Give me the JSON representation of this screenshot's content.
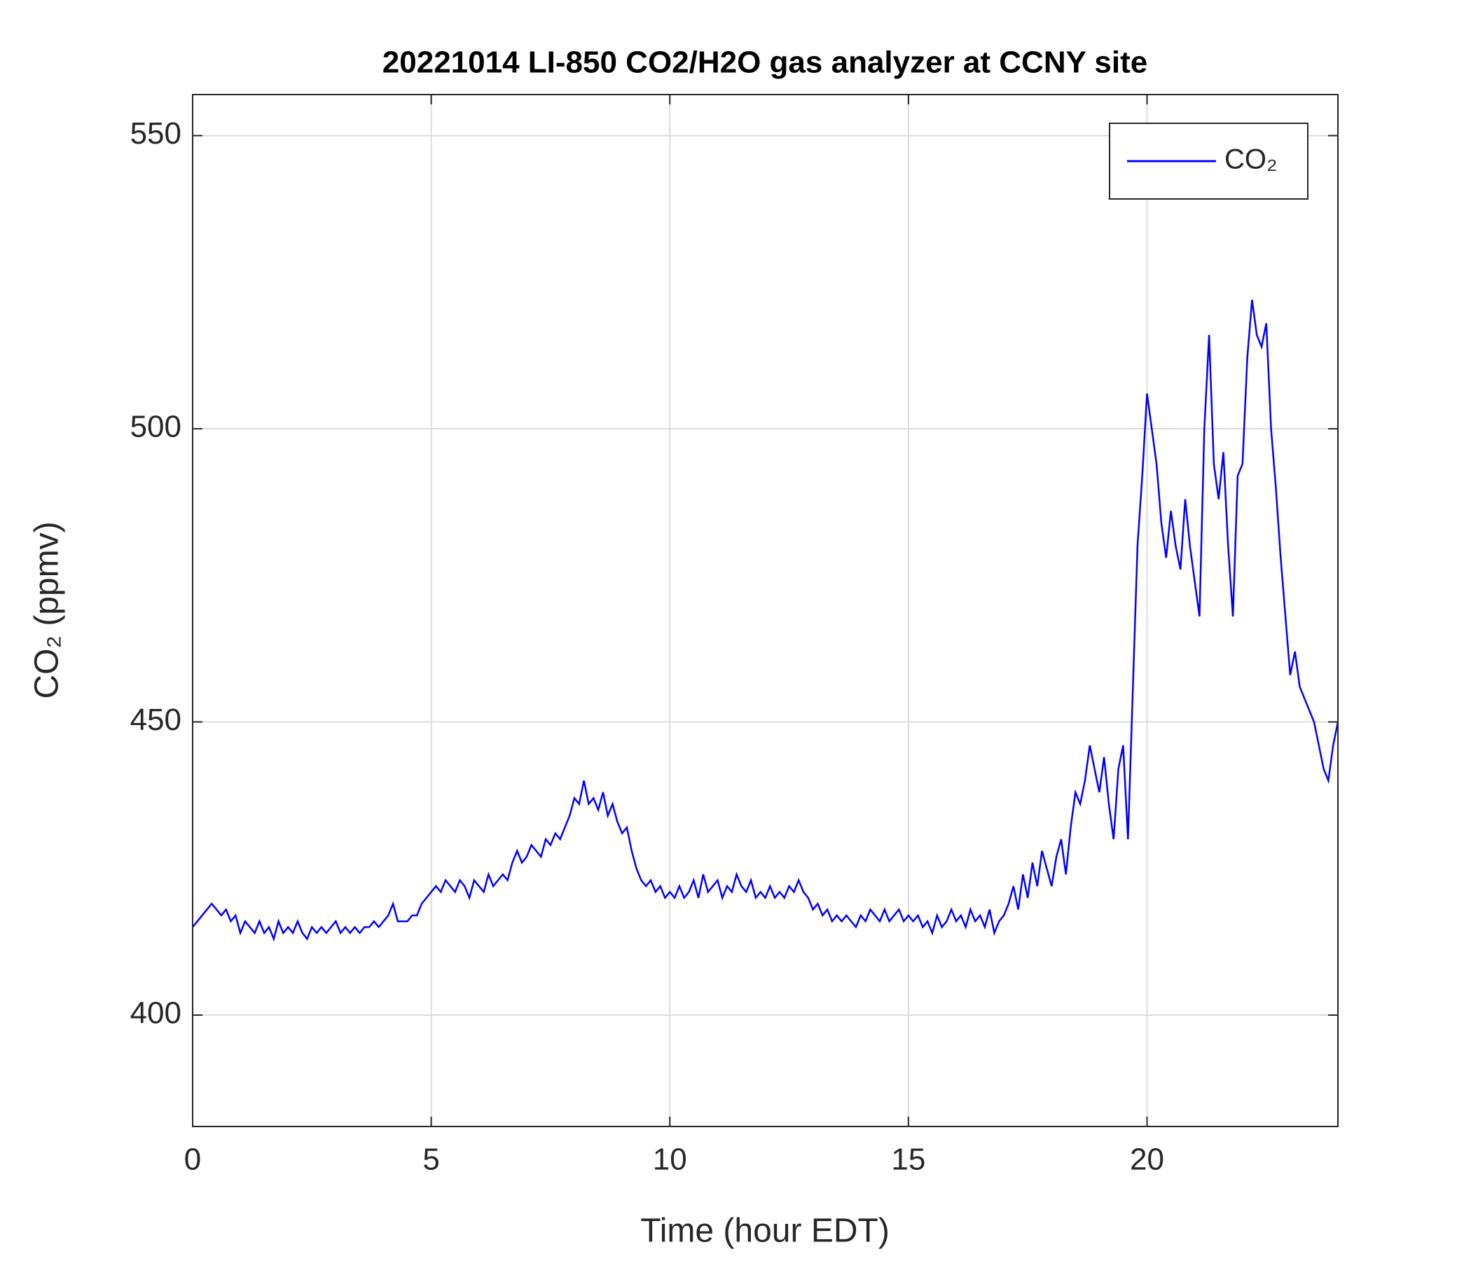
{
  "chart_data": {
    "type": "line",
    "title": "20221014 LI-850 CO2/H2O gas analyzer at CCNY site",
    "xlabel": "Time (hour EDT)",
    "ylabel": "CO₂ (ppmv)",
    "xlim": [
      0,
      24
    ],
    "xticks": [
      0,
      5,
      10,
      15,
      20
    ],
    "ylim": [
      381,
      557
    ],
    "yticks": [
      400,
      450,
      500,
      550
    ],
    "grid": true,
    "legend": "upper right",
    "x": [
      0,
      0.1,
      0.2,
      0.3,
      0.4,
      0.5,
      0.6,
      0.7,
      0.8,
      0.9,
      1,
      1.1,
      1.2,
      1.3,
      1.4,
      1.5,
      1.6,
      1.7,
      1.8,
      1.9,
      2,
      2.1,
      2.2,
      2.3,
      2.4,
      2.5,
      2.6,
      2.7,
      2.8,
      2.9,
      3,
      3.1,
      3.2,
      3.3,
      3.4,
      3.5,
      3.6,
      3.7,
      3.8,
      3.9,
      4,
      4.1,
      4.2,
      4.3,
      4.4,
      4.5,
      4.6,
      4.7,
      4.8,
      4.9,
      5,
      5.1,
      5.2,
      5.3,
      5.4,
      5.5,
      5.6,
      5.7,
      5.8,
      5.9,
      6,
      6.1,
      6.2,
      6.3,
      6.4,
      6.5,
      6.6,
      6.7,
      6.8,
      6.9,
      7,
      7.1,
      7.2,
      7.3,
      7.4,
      7.5,
      7.6,
      7.7,
      7.8,
      7.9,
      8,
      8.1,
      8.2,
      8.3,
      8.4,
      8.5,
      8.6,
      8.7,
      8.8,
      8.9,
      9,
      9.1,
      9.2,
      9.3,
      9.4,
      9.5,
      9.6,
      9.7,
      9.8,
      9.9,
      10,
      10.1,
      10.2,
      10.3,
      10.4,
      10.5,
      10.6,
      10.7,
      10.8,
      10.9,
      11,
      11.1,
      11.2,
      11.3,
      11.4,
      11.5,
      11.6,
      11.7,
      11.8,
      11.9,
      12,
      12.1,
      12.2,
      12.3,
      12.4,
      12.5,
      12.6,
      12.7,
      12.8,
      12.9,
      13,
      13.1,
      13.2,
      13.3,
      13.4,
      13.5,
      13.6,
      13.7,
      13.8,
      13.9,
      14,
      14.1,
      14.2,
      14.3,
      14.4,
      14.5,
      14.6,
      14.7,
      14.8,
      14.9,
      15,
      15.1,
      15.2,
      15.3,
      15.4,
      15.5,
      15.6,
      15.7,
      15.8,
      15.9,
      16,
      16.1,
      16.2,
      16.3,
      16.4,
      16.5,
      16.6,
      16.7,
      16.8,
      16.9,
      17,
      17.1,
      17.2,
      17.3,
      17.4,
      17.5,
      17.6,
      17.7,
      17.8,
      17.9,
      18,
      18.1,
      18.2,
      18.3,
      18.4,
      18.5,
      18.6,
      18.7,
      18.8,
      18.9,
      19,
      19.1,
      19.2,
      19.3,
      19.4,
      19.5,
      19.6,
      19.7,
      19.8,
      19.9,
      20,
      20.1,
      20.2,
      20.3,
      20.4,
      20.5,
      20.6,
      20.7,
      20.8,
      20.9,
      21,
      21.1,
      21.2,
      21.3,
      21.4,
      21.5,
      21.6,
      21.7,
      21.8,
      21.9,
      22,
      22.1,
      22.2,
      22.3,
      22.4,
      22.5,
      22.6,
      22.7,
      22.8,
      22.9,
      23,
      23.1,
      23.2,
      23.3,
      23.4,
      23.5,
      23.6,
      23.7,
      23.8,
      23.9,
      24
    ],
    "series": [
      {
        "name": "CO₂",
        "color": "#0000ff",
        "values": [
          415,
          416,
          417,
          418,
          419,
          418,
          417,
          418,
          416,
          417,
          414,
          416,
          415,
          414,
          416,
          414,
          415,
          413,
          416,
          414,
          415,
          414,
          416,
          414,
          413,
          415,
          414,
          415,
          414,
          415,
          416,
          414,
          415,
          414,
          415,
          414,
          415,
          415,
          416,
          415,
          416,
          417,
          419,
          416,
          416,
          416,
          417,
          417,
          419,
          420,
          421,
          422,
          421,
          423,
          422,
          421,
          423,
          422,
          420,
          423,
          422,
          421,
          424,
          422,
          423,
          424,
          423,
          426,
          428,
          426,
          427,
          429,
          428,
          427,
          430,
          429,
          431,
          430,
          432,
          434,
          437,
          436,
          440,
          436,
          437,
          435,
          438,
          434,
          436,
          433,
          431,
          432,
          428,
          425,
          423,
          422,
          423,
          421,
          422,
          420,
          421,
          420,
          422,
          420,
          421,
          423,
          420,
          424,
          421,
          422,
          423,
          420,
          422,
          421,
          424,
          422,
          421,
          423,
          420,
          421,
          420,
          422,
          420,
          421,
          420,
          422,
          421,
          423,
          421,
          420,
          418,
          419,
          417,
          418,
          416,
          417,
          416,
          417,
          416,
          415,
          417,
          416,
          418,
          417,
          416,
          418,
          416,
          417,
          418,
          416,
          417,
          416,
          417,
          415,
          416,
          414,
          417,
          415,
          416,
          418,
          416,
          417,
          415,
          418,
          416,
          417,
          415,
          418,
          414,
          416,
          417,
          419,
          422,
          418,
          424,
          420,
          426,
          422,
          428,
          425,
          422,
          427,
          430,
          424,
          432,
          438,
          436,
          440,
          446,
          442,
          438,
          444,
          436,
          430,
          442,
          446,
          430,
          455,
          480,
          492,
          506,
          500,
          494,
          484,
          478,
          486,
          480,
          476,
          488,
          480,
          474,
          468,
          500,
          516,
          494,
          488,
          496,
          480,
          468,
          492,
          494,
          512,
          522,
          516,
          514,
          518,
          500,
          490,
          478,
          468,
          458,
          462,
          456,
          454,
          452,
          450,
          446,
          442,
          440,
          446,
          450
        ]
      }
    ]
  }
}
